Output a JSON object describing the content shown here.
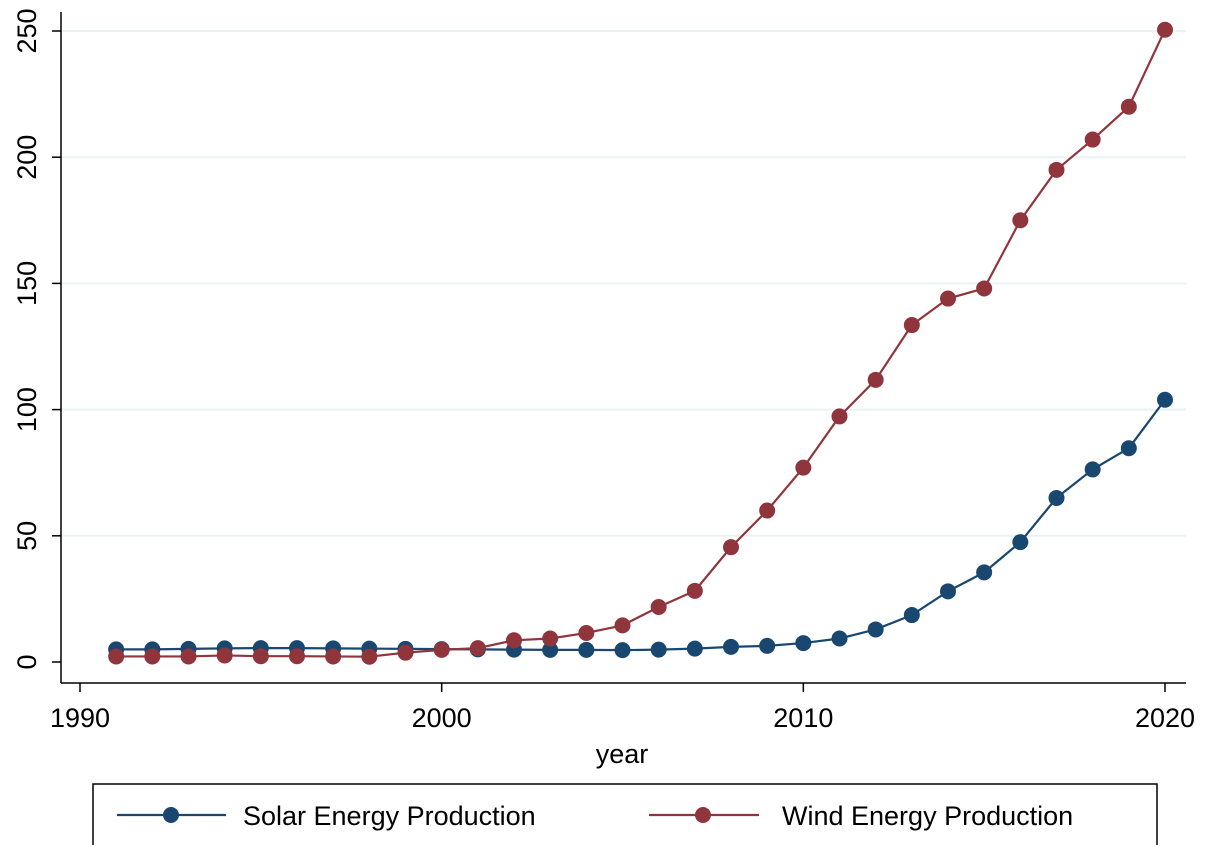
{
  "chart_data": {
    "type": "line",
    "title": "",
    "xlabel": "year",
    "ylabel": "",
    "xlim": [
      1990,
      2020
    ],
    "ylim": [
      0,
      250
    ],
    "xticks": [
      1990,
      2000,
      2010,
      2020
    ],
    "yticks": [
      0,
      50,
      100,
      150,
      200,
      250
    ],
    "grid": true,
    "legend_position": "bottom",
    "x": [
      1991,
      1992,
      1993,
      1994,
      1995,
      1996,
      1997,
      1998,
      1999,
      2000,
      2001,
      2002,
      2003,
      2004,
      2005,
      2006,
      2007,
      2008,
      2009,
      2010,
      2011,
      2012,
      2013,
      2014,
      2015,
      2016,
      2017,
      2018,
      2019,
      2020
    ],
    "series": [
      {
        "name": "Solar Energy Production",
        "color": "#1a476f",
        "values": [
          5,
          5,
          5.2,
          5.4,
          5.5,
          5.5,
          5.4,
          5.3,
          5.2,
          5.1,
          5.0,
          4.9,
          4.8,
          4.8,
          4.7,
          4.9,
          5.3,
          6,
          6.4,
          7.5,
          9.3,
          12.9,
          18.6,
          28,
          35.5,
          47.5,
          65,
          76.3,
          84.7,
          103.9
        ]
      },
      {
        "name": "Wind Energy Production",
        "color": "#90353b",
        "values": [
          2.2,
          2.2,
          2.2,
          2.6,
          2.3,
          2.3,
          2.2,
          2.1,
          3.7,
          4.8,
          5.5,
          8.6,
          9.3,
          11.5,
          14.5,
          21.8,
          28.2,
          45.5,
          60,
          77,
          97.3,
          111.8,
          133.5,
          144,
          148,
          175,
          195,
          207,
          220,
          250.5
        ]
      }
    ]
  }
}
